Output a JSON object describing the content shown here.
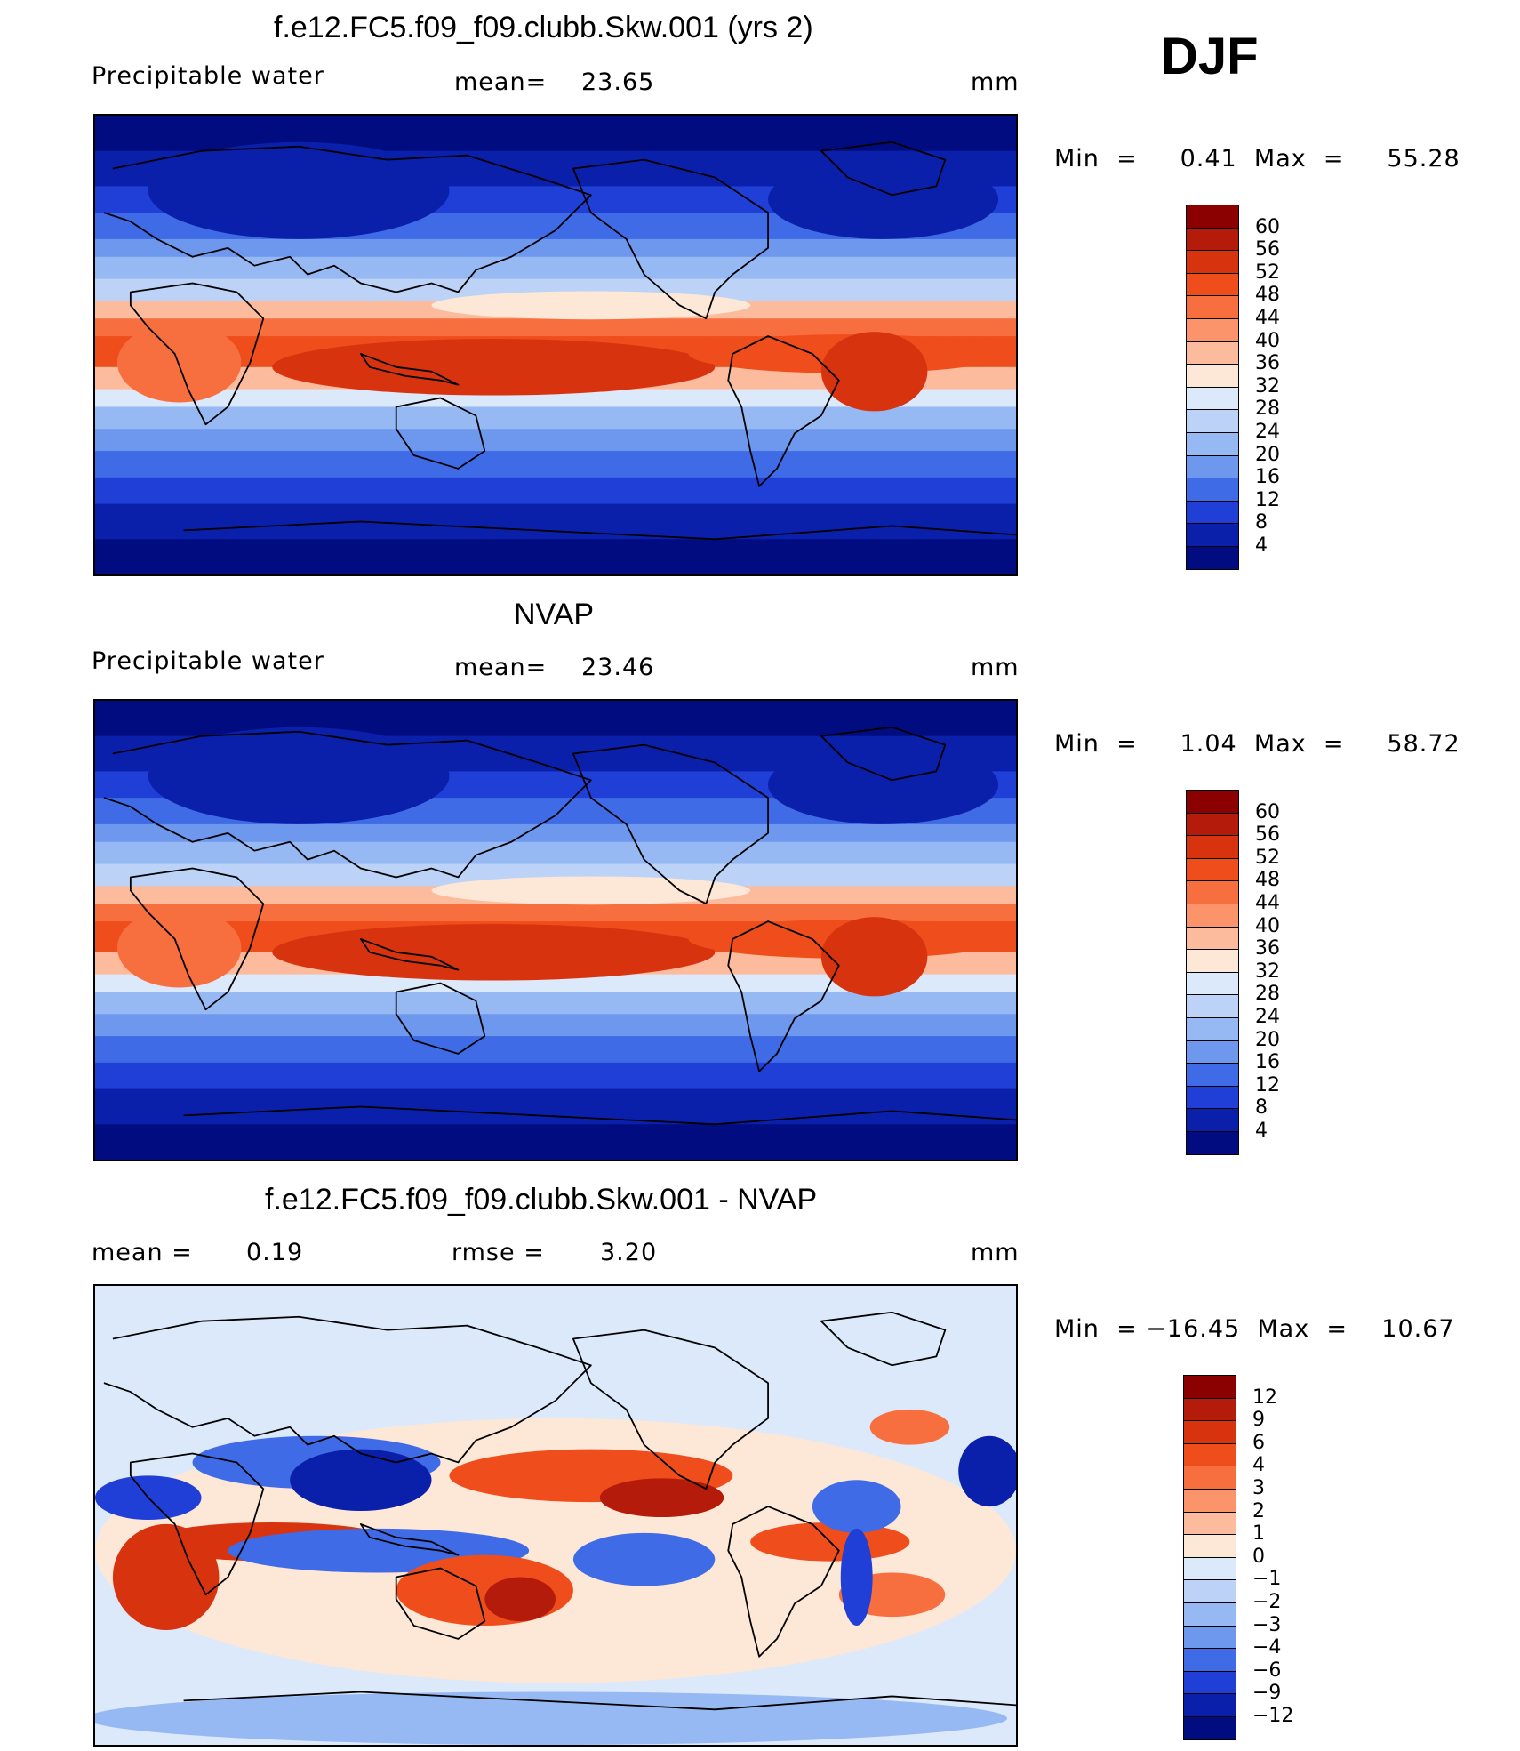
{
  "season": "DJF",
  "units_label": "mm",
  "panels": [
    {
      "title": "f.e12.FC5.f09_f09.clubb.Skw.001 (yrs 2)",
      "left_label": "Precipitable  water",
      "stat1_label": "mean=",
      "stat1_value": "23.65",
      "stat2_label": "",
      "stat2_value": "",
      "units": "mm",
      "minmax": "Min  =     0.41  Max  =     55.28",
      "colorbar": [
        "60",
        "56",
        "52",
        "48",
        "44",
        "40",
        "36",
        "32",
        "28",
        "24",
        "20",
        "16",
        "12",
        "8",
        "4"
      ],
      "colors": [
        "#8b0000",
        "#b51b0b",
        "#d8330f",
        "#ef4d1c",
        "#f86f3f",
        "#fb946a",
        "#fcbb9d",
        "#fde7d6",
        "#dce9fb",
        "#bcd3f7",
        "#97b9f3",
        "#6d98ee",
        "#3f6be6",
        "#1f3fd6",
        "#0a1faa",
        "#000c80"
      ]
    },
    {
      "title": "NVAP",
      "left_label": "Precipitable  water",
      "stat1_label": "mean=",
      "stat1_value": "23.46",
      "stat2_label": "",
      "stat2_value": "",
      "units": "mm",
      "minmax": "Min  =     1.04  Max  =     58.72",
      "colorbar": [
        "60",
        "56",
        "52",
        "48",
        "44",
        "40",
        "36",
        "32",
        "28",
        "24",
        "20",
        "16",
        "12",
        "8",
        "4"
      ],
      "colors": [
        "#8b0000",
        "#b51b0b",
        "#d8330f",
        "#ef4d1c",
        "#f86f3f",
        "#fb946a",
        "#fcbb9d",
        "#fde7d6",
        "#dce9fb",
        "#bcd3f7",
        "#97b9f3",
        "#6d98ee",
        "#3f6be6",
        "#1f3fd6",
        "#0a1faa",
        "#000c80"
      ]
    },
    {
      "title": "f.e12.FC5.f09_f09.clubb.Skw.001 - NVAP",
      "left_label": "mean  =",
      "stat1_label": "",
      "stat1_value": "0.19",
      "stat2_label": "rmse  =",
      "stat2_value": "3.20",
      "units": "mm",
      "minmax": "Min  = −16.45  Max  =    10.67",
      "colorbar": [
        "12",
        "9",
        "6",
        "4",
        "3",
        "2",
        "1",
        "0",
        "−1",
        "−2",
        "−3",
        "−4",
        "−6",
        "−9",
        "−12"
      ],
      "colors": [
        "#8b0000",
        "#b51b0b",
        "#d8330f",
        "#ef4d1c",
        "#f86f3f",
        "#fb946a",
        "#fcbb9d",
        "#fde7d6",
        "#dce9fb",
        "#bcd3f7",
        "#97b9f3",
        "#6d98ee",
        "#3f6be6",
        "#1f3fd6",
        "#0a1faa",
        "#000c80"
      ]
    }
  ]
}
